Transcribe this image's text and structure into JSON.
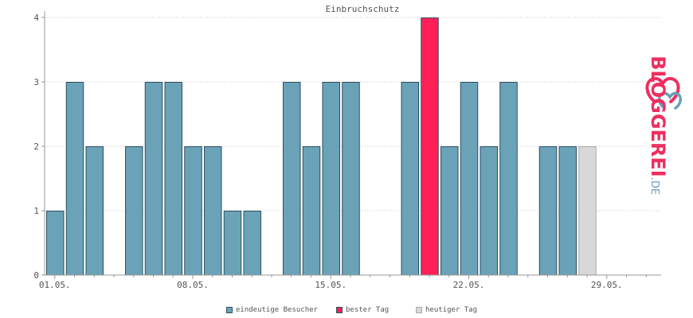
{
  "chart_data": {
    "type": "bar",
    "title": "Einbruchschutz",
    "ylim": [
      0,
      4
    ],
    "yticks": [
      "0",
      "1",
      "2",
      "3",
      "4"
    ],
    "x_tick_labels": [
      "01.05.",
      "08.05.",
      "15.05.",
      "22.05.",
      "29.05."
    ],
    "x_tick_days": [
      1,
      8,
      15,
      22,
      29
    ],
    "days": [
      1,
      2,
      3,
      4,
      5,
      6,
      7,
      8,
      9,
      10,
      11,
      12,
      13,
      14,
      15,
      16,
      17,
      18,
      19,
      20,
      21,
      22,
      23,
      24,
      25,
      26,
      27,
      28,
      29,
      30,
      31
    ],
    "values": [
      1,
      3,
      2,
      0,
      2,
      3,
      3,
      2,
      2,
      1,
      1,
      0,
      3,
      2,
      3,
      3,
      0,
      0,
      3,
      4,
      2,
      3,
      2,
      3,
      0,
      2,
      2,
      2,
      0,
      0,
      0
    ],
    "best_day": 20,
    "today": 28,
    "grid": true,
    "legend_position": "bottom",
    "series": [
      {
        "name": "eindeutige Besucher",
        "color": "#6aa2b8"
      },
      {
        "name": "bester Tag",
        "color": "#ff2058"
      },
      {
        "name": "heutiger Tag",
        "color": "#d8d8d8"
      }
    ]
  },
  "colors": {
    "bar": "#6aa2b8",
    "best": "#ff2058",
    "today": "#d8d8d8",
    "bar_border": "#2f4f5f",
    "today_border": "#aaaaaa",
    "axis": "#999999",
    "text": "#555555"
  },
  "logo": {
    "icon": "bloggerei-heart-icon",
    "text_main": "BLOGGEREI",
    "text_suffix": ".DE"
  }
}
